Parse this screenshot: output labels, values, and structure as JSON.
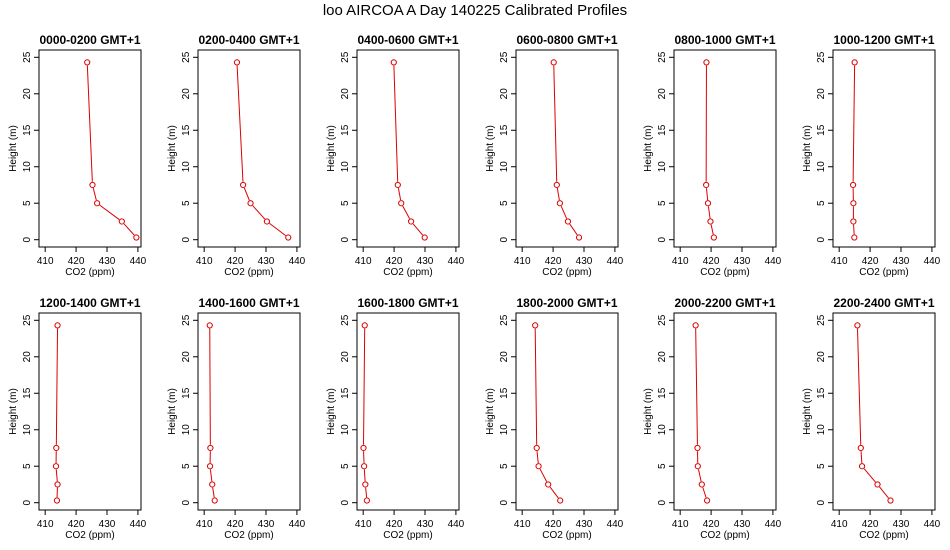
{
  "figure": {
    "title": "loo AIRCOA A  Day 140225  Calibrated Profiles"
  },
  "colors": {
    "series": "#dd0000",
    "axis": "#000000",
    "background": "#ffffff"
  },
  "chart_data": [
    {
      "type": "line",
      "title": "0000-0200 GMT+1",
      "xlabel": "CO2 (ppm)",
      "ylabel": "Height (m)",
      "xlim": [
        408,
        441
      ],
      "ylim": [
        -1,
        26
      ],
      "xticks": [
        410,
        420,
        430,
        440
      ],
      "yticks": [
        0,
        5,
        10,
        15,
        20,
        25
      ],
      "grid": false,
      "points": [
        {
          "x": 439.5,
          "y": 0.3
        },
        {
          "x": 434.8,
          "y": 2.5
        },
        {
          "x": 426.8,
          "y": 5.0
        },
        {
          "x": 425.3,
          "y": 7.5
        },
        {
          "x": 423.6,
          "y": 24.3
        }
      ]
    },
    {
      "type": "line",
      "title": "0200-0400 GMT+1",
      "xlabel": "CO2 (ppm)",
      "ylabel": "Height (m)",
      "xlim": [
        408,
        441
      ],
      "ylim": [
        -1,
        26
      ],
      "xticks": [
        410,
        420,
        430,
        440
      ],
      "yticks": [
        0,
        5,
        10,
        15,
        20,
        25
      ],
      "grid": false,
      "points": [
        {
          "x": 437.2,
          "y": 0.3
        },
        {
          "x": 430.3,
          "y": 2.5
        },
        {
          "x": 425.0,
          "y": 5.0
        },
        {
          "x": 422.6,
          "y": 7.5
        },
        {
          "x": 420.6,
          "y": 24.3
        }
      ]
    },
    {
      "type": "line",
      "title": "0400-0600 GMT+1",
      "xlabel": "CO2 (ppm)",
      "ylabel": "Height (m)",
      "xlim": [
        408,
        441
      ],
      "ylim": [
        -1,
        26
      ],
      "xticks": [
        410,
        420,
        430,
        440
      ],
      "yticks": [
        0,
        5,
        10,
        15,
        20,
        25
      ],
      "grid": false,
      "points": [
        {
          "x": 429.9,
          "y": 0.3
        },
        {
          "x": 425.5,
          "y": 2.5
        },
        {
          "x": 422.3,
          "y": 5.0
        },
        {
          "x": 421.2,
          "y": 7.5
        },
        {
          "x": 419.9,
          "y": 24.3
        }
      ]
    },
    {
      "type": "line",
      "title": "0600-0800 GMT+1",
      "xlabel": "CO2 (ppm)",
      "ylabel": "Height (m)",
      "xlim": [
        408,
        441
      ],
      "ylim": [
        -1,
        26
      ],
      "xticks": [
        410,
        420,
        430,
        440
      ],
      "yticks": [
        0,
        5,
        10,
        15,
        20,
        25
      ],
      "grid": false,
      "points": [
        {
          "x": 428.4,
          "y": 0.3
        },
        {
          "x": 424.8,
          "y": 2.5
        },
        {
          "x": 422.2,
          "y": 5.0
        },
        {
          "x": 421.2,
          "y": 7.5
        },
        {
          "x": 420.2,
          "y": 24.3
        }
      ]
    },
    {
      "type": "line",
      "title": "0800-1000 GMT+1",
      "xlabel": "CO2 (ppm)",
      "ylabel": "Height (m)",
      "xlim": [
        408,
        441
      ],
      "ylim": [
        -1,
        26
      ],
      "xticks": [
        410,
        420,
        430,
        440
      ],
      "yticks": [
        0,
        5,
        10,
        15,
        20,
        25
      ],
      "grid": false,
      "points": [
        {
          "x": 420.9,
          "y": 0.3
        },
        {
          "x": 419.8,
          "y": 2.5
        },
        {
          "x": 419.0,
          "y": 5.0
        },
        {
          "x": 418.4,
          "y": 7.5
        },
        {
          "x": 418.5,
          "y": 24.3
        }
      ]
    },
    {
      "type": "line",
      "title": "1000-1200 GMT+1",
      "xlabel": "CO2 (ppm)",
      "ylabel": "Height (m)",
      "xlim": [
        408,
        441
      ],
      "ylim": [
        -1,
        26
      ],
      "xticks": [
        410,
        420,
        430,
        440
      ],
      "yticks": [
        0,
        5,
        10,
        15,
        20,
        25
      ],
      "grid": false,
      "points": [
        {
          "x": 414.9,
          "y": 0.3
        },
        {
          "x": 414.6,
          "y": 2.5
        },
        {
          "x": 414.6,
          "y": 5.0
        },
        {
          "x": 414.5,
          "y": 7.5
        },
        {
          "x": 415.0,
          "y": 24.3
        }
      ]
    },
    {
      "type": "line",
      "title": "1200-1400 GMT+1",
      "xlabel": "CO2 (ppm)",
      "ylabel": "Height (m)",
      "xlim": [
        408,
        441
      ],
      "ylim": [
        -1,
        26
      ],
      "xticks": [
        410,
        420,
        430,
        440
      ],
      "yticks": [
        0,
        5,
        10,
        15,
        20,
        25
      ],
      "grid": false,
      "points": [
        {
          "x": 413.8,
          "y": 0.3
        },
        {
          "x": 414.0,
          "y": 2.5
        },
        {
          "x": 413.5,
          "y": 5.0
        },
        {
          "x": 413.6,
          "y": 7.5
        },
        {
          "x": 414.0,
          "y": 24.3
        }
      ]
    },
    {
      "type": "line",
      "title": "1400-1600 GMT+1",
      "xlabel": "CO2 (ppm)",
      "ylabel": "Height (m)",
      "xlim": [
        408,
        441
      ],
      "ylim": [
        -1,
        26
      ],
      "xticks": [
        410,
        420,
        430,
        440
      ],
      "yticks": [
        0,
        5,
        10,
        15,
        20,
        25
      ],
      "grid": false,
      "points": [
        {
          "x": 413.4,
          "y": 0.3
        },
        {
          "x": 412.6,
          "y": 2.5
        },
        {
          "x": 411.9,
          "y": 5.0
        },
        {
          "x": 412.0,
          "y": 7.5
        },
        {
          "x": 411.8,
          "y": 24.3
        }
      ]
    },
    {
      "type": "line",
      "title": "1600-1800 GMT+1",
      "xlabel": "CO2 (ppm)",
      "ylabel": "Height (m)",
      "xlim": [
        408,
        441
      ],
      "ylim": [
        -1,
        26
      ],
      "xticks": [
        410,
        420,
        430,
        440
      ],
      "yticks": [
        0,
        5,
        10,
        15,
        20,
        25
      ],
      "grid": false,
      "points": [
        {
          "x": 411.2,
          "y": 0.3
        },
        {
          "x": 410.7,
          "y": 2.5
        },
        {
          "x": 410.3,
          "y": 5.0
        },
        {
          "x": 410.1,
          "y": 7.5
        },
        {
          "x": 410.5,
          "y": 24.3
        }
      ]
    },
    {
      "type": "line",
      "title": "1800-2000 GMT+1",
      "xlabel": "CO2 (ppm)",
      "ylabel": "Height (m)",
      "xlim": [
        408,
        441
      ],
      "ylim": [
        -1,
        26
      ],
      "xticks": [
        410,
        420,
        430,
        440
      ],
      "yticks": [
        0,
        5,
        10,
        15,
        20,
        25
      ],
      "grid": false,
      "points": [
        {
          "x": 422.3,
          "y": 0.3
        },
        {
          "x": 418.4,
          "y": 2.5
        },
        {
          "x": 415.3,
          "y": 5.0
        },
        {
          "x": 414.7,
          "y": 7.5
        },
        {
          "x": 414.2,
          "y": 24.3
        }
      ]
    },
    {
      "type": "line",
      "title": "2000-2200 GMT+1",
      "xlabel": "CO2 (ppm)",
      "ylabel": "Height (m)",
      "xlim": [
        408,
        441
      ],
      "ylim": [
        -1,
        26
      ],
      "xticks": [
        410,
        420,
        430,
        440
      ],
      "yticks": [
        0,
        5,
        10,
        15,
        20,
        25
      ],
      "grid": false,
      "points": [
        {
          "x": 418.7,
          "y": 0.3
        },
        {
          "x": 417.0,
          "y": 2.5
        },
        {
          "x": 415.7,
          "y": 5.0
        },
        {
          "x": 415.6,
          "y": 7.5
        },
        {
          "x": 415.0,
          "y": 24.3
        }
      ]
    },
    {
      "type": "line",
      "title": "2200-2400 GMT+1",
      "xlabel": "CO2 (ppm)",
      "ylabel": "Height (m)",
      "xlim": [
        408,
        441
      ],
      "ylim": [
        -1,
        26
      ],
      "xticks": [
        410,
        420,
        430,
        440
      ],
      "yticks": [
        0,
        5,
        10,
        15,
        20,
        25
      ],
      "grid": false,
      "points": [
        {
          "x": 426.6,
          "y": 0.3
        },
        {
          "x": 422.4,
          "y": 2.5
        },
        {
          "x": 417.4,
          "y": 5.0
        },
        {
          "x": 417.0,
          "y": 7.5
        },
        {
          "x": 415.9,
          "y": 24.3
        }
      ]
    }
  ]
}
